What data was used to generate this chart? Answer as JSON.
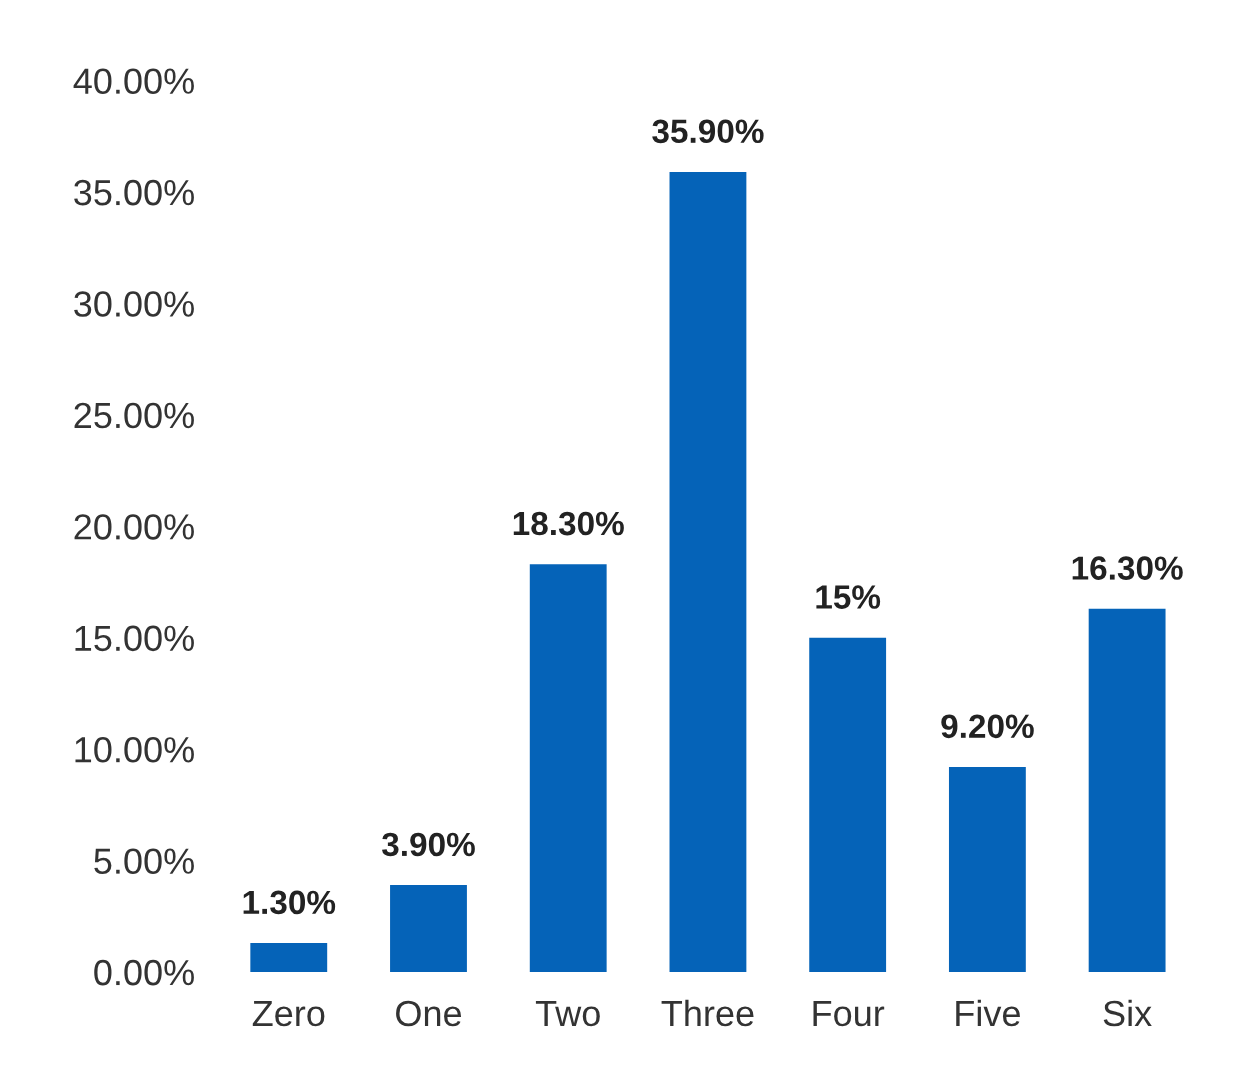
{
  "chart_data": {
    "type": "bar",
    "categories": [
      "Zero",
      "One",
      "Two",
      "Three",
      "Four",
      "Five",
      "Six"
    ],
    "values": [
      1.3,
      3.9,
      18.3,
      35.9,
      15,
      9.2,
      16.3
    ],
    "value_labels": [
      "1.30%",
      "3.90%",
      "18.30%",
      "35.90%",
      "15%",
      "9.20%",
      "16.30%"
    ],
    "color": "#0563b8",
    "ylim": [
      0,
      40
    ],
    "yticks": [
      {
        "value": 0,
        "label": "0.00%"
      },
      {
        "value": 5,
        "label": "5.00%"
      },
      {
        "value": 10,
        "label": "10.00%"
      },
      {
        "value": 15,
        "label": "15.00%"
      },
      {
        "value": 20,
        "label": "20.00%"
      },
      {
        "value": 25,
        "label": "25.00%"
      },
      {
        "value": 30,
        "label": "30.00%"
      },
      {
        "value": 35,
        "label": "35.00%"
      },
      {
        "value": 40,
        "label": "40.00%"
      }
    ],
    "grid": false
  }
}
